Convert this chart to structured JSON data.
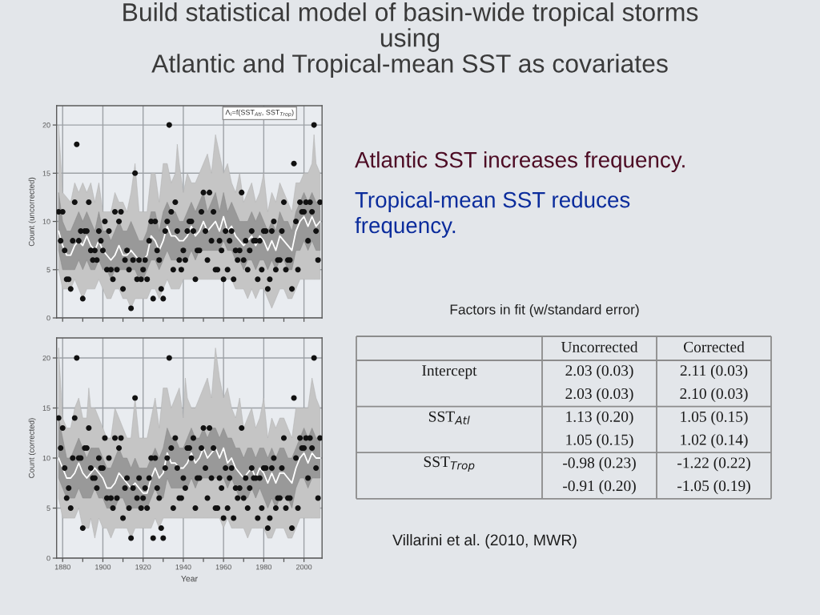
{
  "chart_data": [
    {
      "type": "line",
      "title": "Build statistical model of basin-wide tropical storms\nusing\nAtlantic and Tropical-mean SST as covariates",
      "ylabel": "Count (uncorrected)",
      "annotations": [
        "Λ$_{i}$=f(SST$_{Atl}$, SST$_{Trop}$)"
      ],
      "xlim": [
        1877,
        2009
      ],
      "ylim": [
        0,
        22
      ],
      "xticks": [
        1880,
        {
          "value": 1890,
          "label": null
        },
        1900,
        {
          "value": 1910,
          "label": null
        },
        1920,
        {
          "value": 1930,
          "label": null
        },
        1940,
        {
          "value": 1950,
          "label": null
        },
        1960,
        {
          "value": 1970,
          "label": null
        },
        1980,
        {
          "value": 1990,
          "label": null
        },
        2000
      ],
      "yticks": [
        0,
        5,
        10,
        15,
        20
      ],
      "grid": true,
      "tick_labels": "y",
      "series": [
        {
          "type": "line",
          "color": "#c5c5c5",
          "x": [
            1878,
            1880,
            1882,
            1884,
            1886,
            1888,
            1890,
            1892,
            1894,
            1896,
            1898,
            1900,
            1902,
            1904,
            1906,
            1908,
            1910,
            1912,
            1914,
            1916,
            1918,
            1920,
            1922,
            1924,
            1926,
            1928,
            1930,
            1932,
            1934,
            1936,
            1937,
            1938,
            1940,
            1942,
            1944,
            1946,
            1948,
            1950,
            1952,
            1954,
            1956,
            1958,
            1960,
            1962,
            1964,
            1966,
            1968,
            1970,
            1972,
            1974,
            1976,
            1978,
            1980,
            1982,
            1984,
            1986,
            1988,
            1990,
            1992,
            1994,
            1996,
            1998,
            2000,
            2002,
            2004,
            2005,
            2006,
            2008
          ],
          "values": [
            null,
            null,
            null,
            null,
            null,
            null,
            null,
            null,
            null,
            null,
            null,
            null,
            null,
            null,
            null,
            null,
            null,
            null,
            null,
            null,
            null,
            null,
            null,
            null,
            null,
            null,
            null,
            null,
            null,
            null,
            null,
            null,
            null,
            null,
            null,
            null,
            null,
            null,
            null,
            null,
            null,
            null,
            null,
            null,
            null,
            null,
            null,
            null,
            null,
            null,
            null,
            null,
            null,
            null,
            null,
            null,
            null,
            null,
            null,
            null,
            null,
            null,
            null,
            null,
            null,
            null,
            null,
            null
          ],
          "lower": [
            5,
            3,
            3,
            3,
            4,
            3,
            2,
            3,
            3,
            3,
            4,
            3,
            2,
            2,
            3,
            3,
            2,
            2,
            1,
            2,
            2,
            2,
            2,
            3,
            3,
            2,
            3,
            4,
            3,
            3,
            3,
            3,
            4,
            4,
            4,
            4,
            4,
            4,
            4,
            4,
            4,
            4,
            4,
            4,
            4,
            3,
            3,
            3,
            2,
            3,
            2,
            3,
            3,
            2,
            1,
            2,
            3,
            3,
            2,
            2,
            3,
            4,
            4,
            4,
            4,
            4,
            4,
            4
          ],
          "upper": [
            20,
            13,
            12.5,
            12,
            14,
            13,
            14,
            13,
            14,
            12,
            14,
            11,
            11,
            11,
            13,
            12,
            12,
            11,
            13,
            16,
            11,
            11,
            11,
            15,
            15,
            12,
            16,
            16,
            14,
            15,
            18,
            16,
            13,
            15,
            14,
            14,
            15,
            16,
            17,
            15,
            19,
            17,
            15,
            16,
            14,
            13,
            15,
            12,
            13,
            14,
            12,
            13,
            15,
            11,
            13,
            12,
            14,
            13,
            12,
            11,
            14,
            14,
            15,
            15,
            16,
            19,
            16,
            15
          ]
        },
        {
          "type": "line",
          "color": "#999999",
          "x": [
            1878,
            1880,
            1882,
            1884,
            1886,
            1888,
            1890,
            1892,
            1894,
            1896,
            1898,
            1900,
            1902,
            1904,
            1906,
            1908,
            1910,
            1912,
            1914,
            1916,
            1918,
            1920,
            1922,
            1924,
            1926,
            1928,
            1930,
            1932,
            1934,
            1936,
            1938,
            1940,
            1942,
            1944,
            1946,
            1948,
            1950,
            1952,
            1954,
            1956,
            1958,
            1960,
            1962,
            1964,
            1966,
            1968,
            1970,
            1972,
            1974,
            1976,
            1978,
            1980,
            1982,
            1984,
            1986,
            1988,
            1990,
            1992,
            1994,
            1996,
            1998,
            2000,
            2002,
            2004,
            2006,
            2008
          ],
          "values": [
            null,
            null,
            null,
            null,
            null,
            null,
            null,
            null,
            null,
            null,
            null,
            null,
            null,
            null,
            null,
            null,
            null,
            null,
            null,
            null,
            null,
            null,
            null,
            null,
            null,
            null,
            null,
            null,
            null,
            null,
            null,
            null,
            null,
            null,
            null,
            null,
            null,
            null,
            null,
            null,
            null,
            null,
            null,
            null,
            null,
            null,
            null,
            null,
            null,
            null,
            null,
            null,
            null,
            null,
            null,
            null,
            null,
            null,
            null,
            null,
            null,
            null,
            null,
            null,
            null,
            null
          ],
          "lower": [
            7,
            5,
            5,
            5,
            5,
            6,
            5,
            6,
            5,
            5,
            6,
            5,
            5,
            4,
            5,
            5,
            5,
            5,
            5,
            5,
            4,
            4,
            5,
            6,
            6,
            5,
            6,
            7,
            6,
            6,
            6,
            6,
            6,
            7,
            6,
            7,
            7,
            7,
            7,
            7,
            7,
            8,
            7,
            7,
            6,
            6,
            5,
            6,
            6,
            5,
            6,
            6,
            5,
            6,
            5,
            6,
            6,
            5,
            5,
            7,
            7,
            8,
            7,
            8,
            7,
            7
          ],
          "upper": [
            13,
            10,
            9,
            9,
            10,
            11,
            10,
            11,
            10,
            9,
            11,
            9,
            9,
            8,
            9,
            10,
            9,
            9,
            10,
            9,
            8,
            8,
            9,
            11,
            11,
            9,
            11,
            12,
            11,
            11,
            10,
            10,
            11,
            12,
            11,
            12,
            13,
            11,
            12,
            13,
            11,
            13,
            11,
            12,
            11,
            10,
            10,
            10,
            11,
            10,
            11,
            10,
            9,
            10,
            9,
            11,
            10,
            10,
            9,
            11,
            12,
            13,
            12,
            13,
            12,
            12
          ]
        },
        {
          "type": "line",
          "color": "#ffffff",
          "x": [
            1878,
            1880,
            1882,
            1884,
            1886,
            1888,
            1890,
            1892,
            1894,
            1896,
            1898,
            1900,
            1902,
            1904,
            1906,
            1908,
            1910,
            1912,
            1914,
            1916,
            1918,
            1920,
            1922,
            1924,
            1926,
            1928,
            1930,
            1932,
            1934,
            1936,
            1938,
            1940,
            1942,
            1944,
            1946,
            1948,
            1950,
            1952,
            1954,
            1956,
            1958,
            1960,
            1962,
            1964,
            1966,
            1968,
            1970,
            1972,
            1974,
            1976,
            1978,
            1980,
            1982,
            1984,
            1986,
            1988,
            1990,
            1992,
            1994,
            1996,
            1998,
            2000,
            2002,
            2004,
            2006,
            2008
          ],
          "values": [
            9,
            7.5,
            6.5,
            6.5,
            7.5,
            8,
            7.5,
            8.5,
            7.5,
            7,
            8,
            7,
            6.5,
            6,
            6.5,
            7.5,
            6.5,
            6.5,
            7,
            6.5,
            6,
            6,
            6.5,
            8.5,
            8,
            7,
            8,
            9.5,
            8.5,
            8.5,
            8,
            8,
            8.5,
            9.5,
            8.5,
            9,
            10,
            9,
            9.5,
            10,
            9,
            10.5,
            9,
            9.5,
            8.5,
            8,
            7.5,
            8,
            8.5,
            7.5,
            8.5,
            8,
            7,
            8,
            7,
            8.5,
            8,
            7.5,
            7,
            9,
            10,
            10.5,
            9.5,
            10.5,
            9.5,
            10
          ]
        },
        {
          "type": "scatter",
          "color": "#111111",
          "marker": "circle",
          "x": [
            1878,
            1879,
            1880,
            1881,
            1882,
            1883,
            1884,
            1885,
            1886,
            1887,
            1888,
            1889,
            1890,
            1891,
            1892,
            1893,
            1894,
            1895,
            1896,
            1897,
            1898,
            1899,
            1900,
            1901,
            1902,
            1903,
            1904,
            1905,
            1906,
            1907,
            1908,
            1909,
            1910,
            1911,
            1912,
            1913,
            1914,
            1915,
            1916,
            1917,
            1918,
            1919,
            1920,
            1921,
            1922,
            1923,
            1924,
            1925,
            1926,
            1927,
            1928,
            1929,
            1930,
            1931,
            1932,
            1933,
            1934,
            1935,
            1936,
            1937,
            1938,
            1939,
            1940,
            1941,
            1942,
            1943,
            1944,
            1945,
            1946,
            1947,
            1948,
            1949,
            1950,
            1951,
            1952,
            1953,
            1954,
            1955,
            1956,
            1957,
            1958,
            1959,
            1960,
            1961,
            1962,
            1963,
            1964,
            1965,
            1966,
            1967,
            1968,
            1969,
            1970,
            1971,
            1972,
            1973,
            1974,
            1975,
            1976,
            1977,
            1978,
            1979,
            1980,
            1981,
            1982,
            1983,
            1984,
            1985,
            1986,
            1987,
            1988,
            1989,
            1990,
            1991,
            1992,
            1993,
            1994,
            1995,
            1996,
            1997,
            1998,
            1999,
            2000,
            2001,
            2002,
            2003,
            2004,
            2005,
            2006,
            2007,
            2008
          ],
          "values": [
            11,
            8,
            11,
            7,
            4,
            4,
            3,
            8,
            12,
            18,
            8,
            9,
            2,
            9,
            9,
            12,
            7,
            6,
            7,
            6,
            9,
            8,
            7,
            10,
            5,
            9,
            5,
            4,
            11,
            5,
            10,
            11,
            3,
            6,
            7,
            5,
            1,
            6,
            15,
            4,
            6,
            4,
            5,
            6,
            4,
            8,
            10,
            2,
            10,
            7,
            6,
            3,
            2,
            9,
            10,
            20,
            11,
            5,
            12,
            9,
            6,
            5,
            7,
            6,
            9,
            10,
            10,
            9,
            4,
            7,
            7,
            11,
            13,
            9,
            6,
            13,
            8,
            11,
            5,
            5,
            8,
            7,
            4,
            9,
            5,
            8,
            9,
            4,
            7,
            6,
            7,
            13,
            6,
            8,
            5,
            7,
            9,
            8,
            8,
            4,
            8,
            5,
            9,
            9,
            3,
            4,
            9,
            10,
            5,
            6,
            6,
            9,
            12,
            5,
            6,
            6,
            3,
            16,
            10,
            5,
            12,
            11,
            11,
            12,
            8,
            12,
            11,
            20,
            9,
            6,
            12
          ]
        }
      ]
    },
    {
      "type": "line",
      "xlabel": "Year",
      "ylabel": "Count (corrected)",
      "xlim": [
        1877,
        2009
      ],
      "ylim": [
        0,
        22
      ],
      "xticks": [
        1880,
        {
          "value": 1890,
          "label": null
        },
        1900,
        {
          "value": 1910,
          "label": null
        },
        1920,
        {
          "value": 1930,
          "label": null
        },
        1940,
        {
          "value": 1950,
          "label": null
        },
        1960,
        {
          "value": 1970,
          "label": null
        },
        1980,
        {
          "value": 1990,
          "label": null
        },
        2000
      ],
      "yticks": [
        0,
        5,
        10,
        15,
        20
      ],
      "grid": true,
      "series": [
        {
          "type": "line",
          "color": "#c5c5c5",
          "x": [
            1878,
            1880,
            1882,
            1884,
            1886,
            1888,
            1890,
            1892,
            1893,
            1894,
            1896,
            1898,
            1900,
            1902,
            1904,
            1906,
            1908,
            1910,
            1912,
            1914,
            1916,
            1918,
            1920,
            1922,
            1924,
            1926,
            1928,
            1930,
            1932,
            1934,
            1936,
            1938,
            1940,
            1941,
            1942,
            1944,
            1946,
            1948,
            1950,
            1952,
            1954,
            1956,
            1958,
            1960,
            1962,
            1964,
            1966,
            1968,
            1970,
            1972,
            1974,
            1976,
            1978,
            1980,
            1982,
            1984,
            1986,
            1988,
            1990,
            1992,
            1994,
            1996,
            1998,
            2000,
            2002,
            2004,
            2006,
            2008
          ],
          "values": [
            null,
            null,
            null,
            null,
            null,
            null,
            null,
            null,
            null,
            null,
            null,
            null,
            null,
            null,
            null,
            null,
            null,
            null,
            null,
            null,
            null,
            null,
            null,
            null,
            null,
            null,
            null,
            null,
            null,
            null,
            null,
            null,
            null,
            null,
            null,
            null,
            null,
            null,
            null,
            null,
            null,
            null,
            null,
            null,
            null,
            null,
            null,
            null,
            null,
            null,
            null,
            null,
            null,
            null,
            null,
            null,
            null,
            null,
            null,
            null,
            null,
            null,
            null,
            null,
            null,
            null,
            null,
            null
          ],
          "lower": [
            6,
            4,
            4,
            4,
            4,
            5,
            3,
            3,
            3,
            4,
            2,
            4,
            3,
            3,
            2,
            3,
            3,
            3,
            3,
            2,
            3,
            3,
            3,
            3,
            3,
            4,
            3,
            4,
            4,
            4,
            4,
            4,
            4,
            4,
            4,
            4,
            4,
            4,
            4,
            4,
            4,
            4,
            4,
            3,
            4,
            3,
            3,
            3,
            3,
            2,
            3,
            3,
            3,
            3,
            2,
            2,
            3,
            3,
            3,
            2,
            2,
            3,
            4,
            4,
            4,
            4,
            4,
            4
          ],
          "upper": [
            21,
            14,
            13,
            13,
            15,
            16,
            14,
            14,
            17,
            15,
            15,
            14,
            13,
            12,
            12,
            15,
            14,
            13,
            12,
            12,
            16,
            12,
            12,
            12,
            14,
            16,
            13,
            17,
            17,
            15,
            16,
            17,
            14,
            18,
            16,
            15,
            15,
            16,
            17,
            18,
            16,
            21,
            18,
            16,
            17,
            15,
            14,
            16,
            13,
            14,
            15,
            13,
            14,
            16,
            12,
            14,
            13,
            14,
            14,
            13,
            12,
            15,
            15,
            15,
            15,
            18,
            16,
            15
          ]
        },
        {
          "type": "line",
          "color": "#999999",
          "x": [
            1878,
            1880,
            1882,
            1884,
            1886,
            1888,
            1890,
            1892,
            1894,
            1896,
            1898,
            1900,
            1902,
            1904,
            1906,
            1908,
            1910,
            1912,
            1914,
            1916,
            1918,
            1920,
            1922,
            1924,
            1926,
            1928,
            1930,
            1932,
            1934,
            1936,
            1938,
            1940,
            1942,
            1944,
            1946,
            1948,
            1950,
            1952,
            1954,
            1956,
            1958,
            1960,
            1962,
            1964,
            1966,
            1968,
            1970,
            1972,
            1974,
            1976,
            1978,
            1980,
            1982,
            1984,
            1986,
            1988,
            1990,
            1992,
            1994,
            1996,
            1998,
            2000,
            2002,
            2004,
            2006,
            2008
          ],
          "values": [
            null,
            null,
            null,
            null,
            null,
            null,
            null,
            null,
            null,
            null,
            null,
            null,
            null,
            null,
            null,
            null,
            null,
            null,
            null,
            null,
            null,
            null,
            null,
            null,
            null,
            null,
            null,
            null,
            null,
            null,
            null,
            null,
            null,
            null,
            null,
            null,
            null,
            null,
            null,
            null,
            null,
            null,
            null,
            null,
            null,
            null,
            null,
            null,
            null,
            null,
            null,
            null,
            null,
            null,
            null,
            null,
            null,
            null,
            null,
            null,
            null,
            null,
            null,
            null,
            null,
            null
          ],
          "lower": [
            8,
            7,
            6,
            6,
            6,
            7,
            6,
            6,
            6,
            7,
            6,
            6,
            5,
            5,
            5,
            6,
            6,
            5,
            5,
            5,
            5,
            5,
            5,
            6,
            7,
            6,
            6,
            8,
            7,
            7,
            7,
            7,
            7,
            8,
            7,
            8,
            8,
            8,
            8,
            8,
            8,
            8,
            7,
            8,
            7,
            6,
            6,
            6,
            7,
            6,
            7,
            6,
            5,
            6,
            5,
            6,
            6,
            6,
            5,
            7,
            8,
            8,
            7,
            8,
            8,
            8
          ],
          "upper": [
            14,
            12,
            10,
            10,
            11,
            12,
            11,
            10,
            11,
            11,
            11,
            10,
            9,
            9,
            10,
            11,
            10,
            10,
            9,
            10,
            9,
            9,
            9,
            10,
            11,
            10,
            11,
            13,
            12,
            12,
            11,
            11,
            12,
            13,
            12,
            12,
            13,
            12,
            13,
            13,
            12,
            13,
            12,
            12,
            11,
            11,
            10,
            11,
            11,
            10,
            11,
            11,
            10,
            11,
            10,
            11,
            11,
            10,
            10,
            11,
            12,
            13,
            12,
            13,
            12,
            12
          ]
        },
        {
          "type": "line",
          "color": "#ffffff",
          "x": [
            1878,
            1880,
            1882,
            1884,
            1886,
            1888,
            1890,
            1892,
            1894,
            1896,
            1898,
            1900,
            1902,
            1904,
            1906,
            1908,
            1910,
            1912,
            1914,
            1916,
            1918,
            1920,
            1922,
            1924,
            1926,
            1928,
            1930,
            1932,
            1934,
            1936,
            1938,
            1940,
            1942,
            1944,
            1946,
            1948,
            1950,
            1952,
            1954,
            1956,
            1958,
            1960,
            1962,
            1964,
            1966,
            1968,
            1970,
            1972,
            1974,
            1976,
            1978,
            1980,
            1982,
            1984,
            1986,
            1988,
            1990,
            1992,
            1994,
            1996,
            1998,
            2000,
            2002,
            2004,
            2006,
            2008
          ],
          "values": [
            10,
            9,
            8,
            8,
            8.5,
            9.5,
            8.5,
            8,
            8.5,
            9,
            8.5,
            8,
            7,
            7,
            7.5,
            8.5,
            8,
            7.5,
            7,
            7.5,
            7,
            6.5,
            6.5,
            8,
            9,
            8,
            8.5,
            10.5,
            9.5,
            9.5,
            9,
            9,
            9.5,
            10.5,
            9.5,
            10,
            11,
            10,
            10.5,
            11,
            10,
            11,
            9.5,
            10,
            9,
            8.5,
            8,
            8.5,
            9,
            8,
            9,
            8.5,
            7.5,
            8.5,
            7.5,
            8.5,
            8.5,
            8,
            7.5,
            9,
            10,
            10.5,
            9.5,
            10.5,
            10,
            10
          ]
        },
        {
          "type": "scatter",
          "color": "#111111",
          "marker": "circle",
          "x": [
            1878,
            1879,
            1880,
            1881,
            1882,
            1883,
            1884,
            1885,
            1886,
            1887,
            1888,
            1889,
            1890,
            1891,
            1892,
            1893,
            1894,
            1895,
            1896,
            1897,
            1898,
            1899,
            1900,
            1901,
            1902,
            1903,
            1904,
            1905,
            1906,
            1907,
            1908,
            1909,
            1910,
            1911,
            1912,
            1913,
            1914,
            1915,
            1916,
            1917,
            1918,
            1919,
            1920,
            1921,
            1922,
            1923,
            1924,
            1925,
            1926,
            1927,
            1928,
            1929,
            1930,
            1931,
            1932,
            1933,
            1934,
            1935,
            1936,
            1937,
            1938,
            1939,
            1940,
            1941,
            1942,
            1943,
            1944,
            1945,
            1946,
            1947,
            1948,
            1949,
            1950,
            1951,
            1952,
            1953,
            1954,
            1955,
            1956,
            1957,
            1958,
            1959,
            1960,
            1961,
            1962,
            1963,
            1964,
            1965,
            1966,
            1967,
            1968,
            1969,
            1970,
            1971,
            1972,
            1973,
            1974,
            1975,
            1976,
            1977,
            1978,
            1979,
            1980,
            1981,
            1982,
            1983,
            1984,
            1985,
            1986,
            1987,
            1988,
            1989,
            1990,
            1991,
            1992,
            1993,
            1994,
            1995,
            1996,
            1997,
            1998,
            1999,
            2000,
            2001,
            2002,
            2003,
            2004,
            2005,
            2006,
            2007,
            2008
          ],
          "values": [
            14,
            11,
            13,
            9,
            6,
            7,
            5,
            10,
            14,
            20,
            10,
            10,
            3,
            11,
            11,
            13,
            9,
            8,
            8,
            7,
            10,
            9,
            9,
            12,
            6,
            10,
            6,
            5,
            12,
            6,
            11,
            12,
            4,
            7,
            8,
            5,
            2,
            7,
            16,
            6,
            8,
            5,
            6,
            7,
            5,
            8,
            10,
            2,
            10,
            7,
            6,
            3,
            2,
            9,
            10,
            20,
            11,
            5,
            12,
            9,
            6,
            6,
            8,
            7,
            11,
            11,
            10,
            12,
            5,
            8,
            8,
            11,
            13,
            9,
            6,
            13,
            8,
            11,
            5,
            5,
            8,
            7,
            4,
            9,
            5,
            8,
            9,
            4,
            7,
            6,
            7,
            13,
            6,
            8,
            5,
            7,
            9,
            8,
            8,
            4,
            8,
            5,
            9,
            9,
            3,
            4,
            9,
            10,
            5,
            6,
            6,
            9,
            12,
            5,
            6,
            6,
            3,
            16,
            10,
            5,
            12,
            11,
            11,
            12,
            8,
            12,
            11,
            20,
            9,
            6,
            12
          ]
        }
      ]
    },
    {
      "type": "other",
      "title": "Factors in fit (w/standard error)",
      "categories": [
        "Uncorrected",
        "Corrected"
      ],
      "y_categories": [
        "Intercept",
        null,
        "SST$_{Atl}$",
        null,
        "SST$_{Trop}$",
        null
      ],
      "cell_labels": [
        [
          "2.03 (0.03)",
          "2.11 (0.03)"
        ],
        [
          "2.03 (0.03)",
          "2.10 (0.03)"
        ],
        [
          "1.13 (0.20)",
          "1.05 (0.15)"
        ],
        [
          "1.05 (0.15)",
          "1.02 (0.14)"
        ],
        [
          "-0.98 (0.23)",
          "-1.22 (0.22)"
        ],
        [
          "-0.91 (0.20)",
          "-1.05 (0.19)"
        ]
      ],
      "annotations": [
        "Atlantic SST increases frequency.",
        "Tropical-mean SST reduces\nfrequency.",
        "Villarini et al. (2010, MWR)"
      ]
    }
  ]
}
